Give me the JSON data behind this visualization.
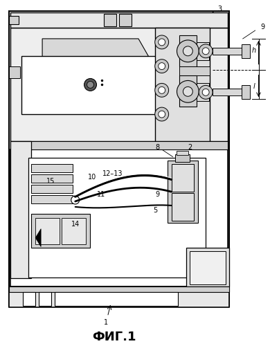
{
  "title": "ФИГ.1",
  "title_fontsize": 13,
  "title_fontweight": "bold",
  "bg_color": "#ffffff",
  "fig_width": 3.9,
  "fig_height": 5.0,
  "dpi": 100
}
